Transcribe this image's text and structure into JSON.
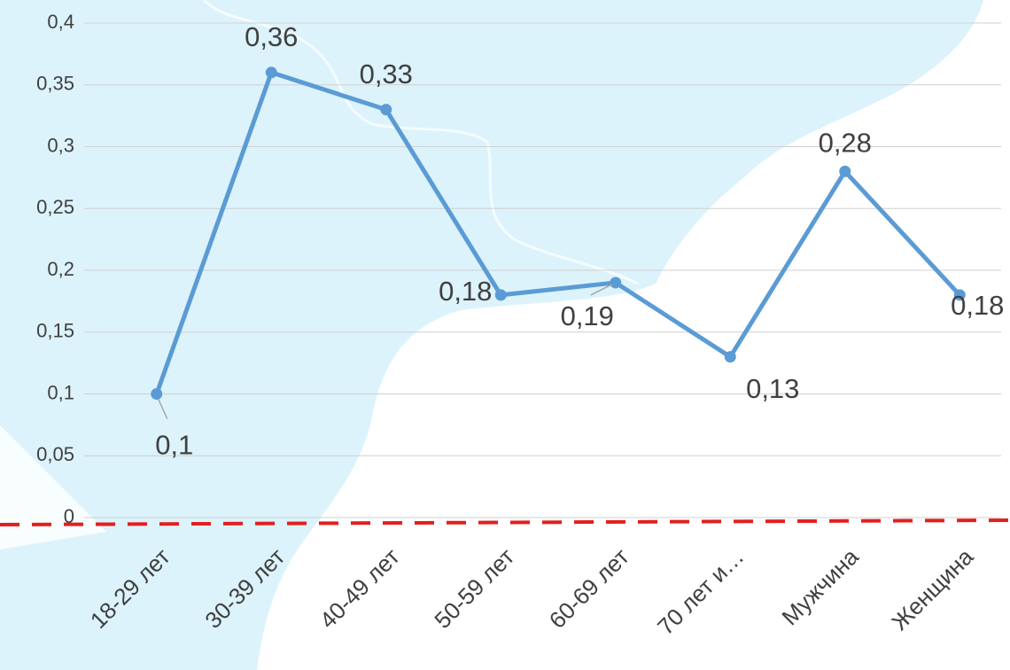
{
  "chart_data": {
    "type": "line",
    "categories": [
      "18-29 лет",
      "30-39 лет",
      "40-49 лет",
      "50-59 лет",
      "60-69 лет",
      "70 лет и…",
      "Мужчина",
      "Женщина"
    ],
    "series": [
      {
        "color": "#5b9bd5",
        "values": [
          0.1,
          0.36,
          0.33,
          0.18,
          0.19,
          0.13,
          0.28,
          0.18
        ],
        "value_labels": [
          "0,1",
          "0,36",
          "0,33",
          "0,18",
          "0,19",
          "0,13",
          "0,28",
          "0,18"
        ]
      }
    ],
    "ylim": [
      0,
      0.4
    ],
    "yticks": [
      0,
      {
        "value": 0.05,
        "label": "0,05"
      },
      {
        "value": 0.1,
        "label": "0,1"
      },
      {
        "value": 0.15,
        "label": "0,15"
      },
      {
        "value": 0.2,
        "label": "0,2"
      },
      {
        "value": 0.25,
        "label": "0,25"
      },
      {
        "value": 0.3,
        "label": "0,3"
      },
      {
        "value": 0.35,
        "label": "0,35"
      },
      {
        "value": 0.4,
        "label": "0,4"
      }
    ],
    "grid": true
  }
}
